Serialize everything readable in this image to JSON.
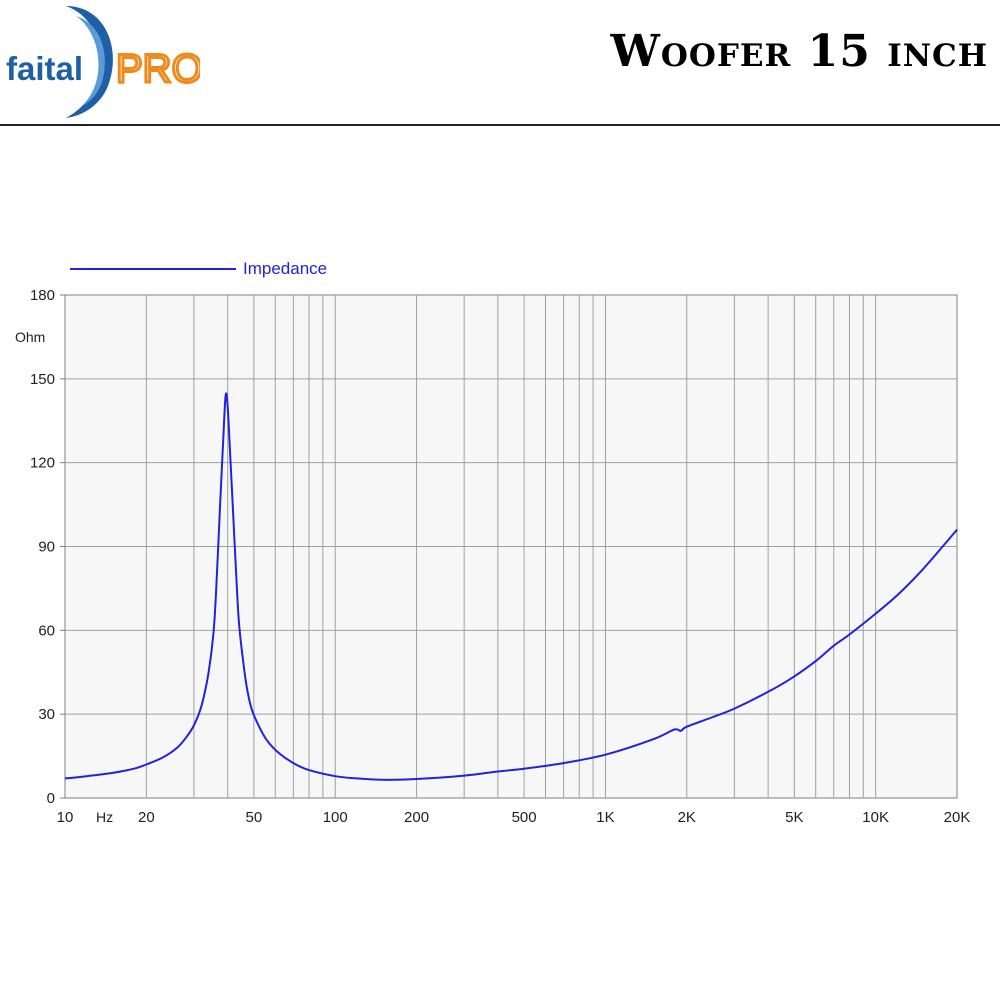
{
  "header": {
    "brand_text_faital": "faital",
    "brand_text_pro": "PRO",
    "title": "Woofer 15 inch"
  },
  "colors": {
    "brand_blue": "#1f5fa8",
    "brand_orange": "#ef8a1d",
    "series": "#2222dd",
    "grid": "#a0a0a0",
    "plot_bg": "#f7f7f7"
  },
  "chart_data": {
    "type": "line",
    "x_scale": "log",
    "xlim": [
      10,
      20000
    ],
    "ylim": [
      0,
      180
    ],
    "grid": true,
    "legend_position": "top-left",
    "y_unit": "Ohm",
    "x_unit": "Hz",
    "y_ticks": [
      0,
      30,
      60,
      90,
      120,
      150,
      180
    ],
    "y_tick_labels": [
      "0",
      "30",
      "60",
      "90",
      "120",
      "150",
      "180"
    ],
    "x_ticks": [
      10,
      20,
      50,
      100,
      200,
      500,
      1000,
      2000,
      5000,
      10000,
      20000
    ],
    "x_tick_labels": [
      "10",
      "20",
      "50",
      "100",
      "200",
      "500",
      "1K",
      "2K",
      "5K",
      "10K",
      "20K"
    ],
    "series": [
      {
        "name": "Impedance",
        "color": "#2222dd",
        "points": [
          [
            10,
            7
          ],
          [
            12,
            7.8
          ],
          [
            15,
            9
          ],
          [
            18,
            10.5
          ],
          [
            20,
            12
          ],
          [
            23,
            14.5
          ],
          [
            26,
            18
          ],
          [
            28,
            21.5
          ],
          [
            30,
            26
          ],
          [
            32,
            33
          ],
          [
            34,
            45
          ],
          [
            35.5,
            60
          ],
          [
            36.5,
            80
          ],
          [
            37.5,
            105
          ],
          [
            38.5,
            128
          ],
          [
            39.3,
            144
          ],
          [
            40,
            140
          ],
          [
            41,
            120
          ],
          [
            42,
            100
          ],
          [
            43,
            80
          ],
          [
            44,
            63
          ],
          [
            45.5,
            50
          ],
          [
            47,
            40
          ],
          [
            49,
            32
          ],
          [
            52,
            26
          ],
          [
            56,
            20.5
          ],
          [
            62,
            16
          ],
          [
            70,
            12.5
          ],
          [
            80,
            10
          ],
          [
            100,
            7.8
          ],
          [
            120,
            7
          ],
          [
            150,
            6.5
          ],
          [
            200,
            6.8
          ],
          [
            300,
            8
          ],
          [
            400,
            9.5
          ],
          [
            500,
            10.5
          ],
          [
            700,
            12.5
          ],
          [
            1000,
            15.5
          ],
          [
            1500,
            21
          ],
          [
            1800,
            24.5
          ],
          [
            1900,
            24
          ],
          [
            2000,
            25.5
          ],
          [
            2500,
            29
          ],
          [
            3000,
            32
          ],
          [
            4000,
            38
          ],
          [
            5000,
            43.5
          ],
          [
            6000,
            49
          ],
          [
            7000,
            54.5
          ],
          [
            8000,
            58.5
          ],
          [
            10000,
            66
          ],
          [
            12000,
            72.5
          ],
          [
            15000,
            82
          ],
          [
            20000,
            96
          ]
        ]
      }
    ]
  }
}
